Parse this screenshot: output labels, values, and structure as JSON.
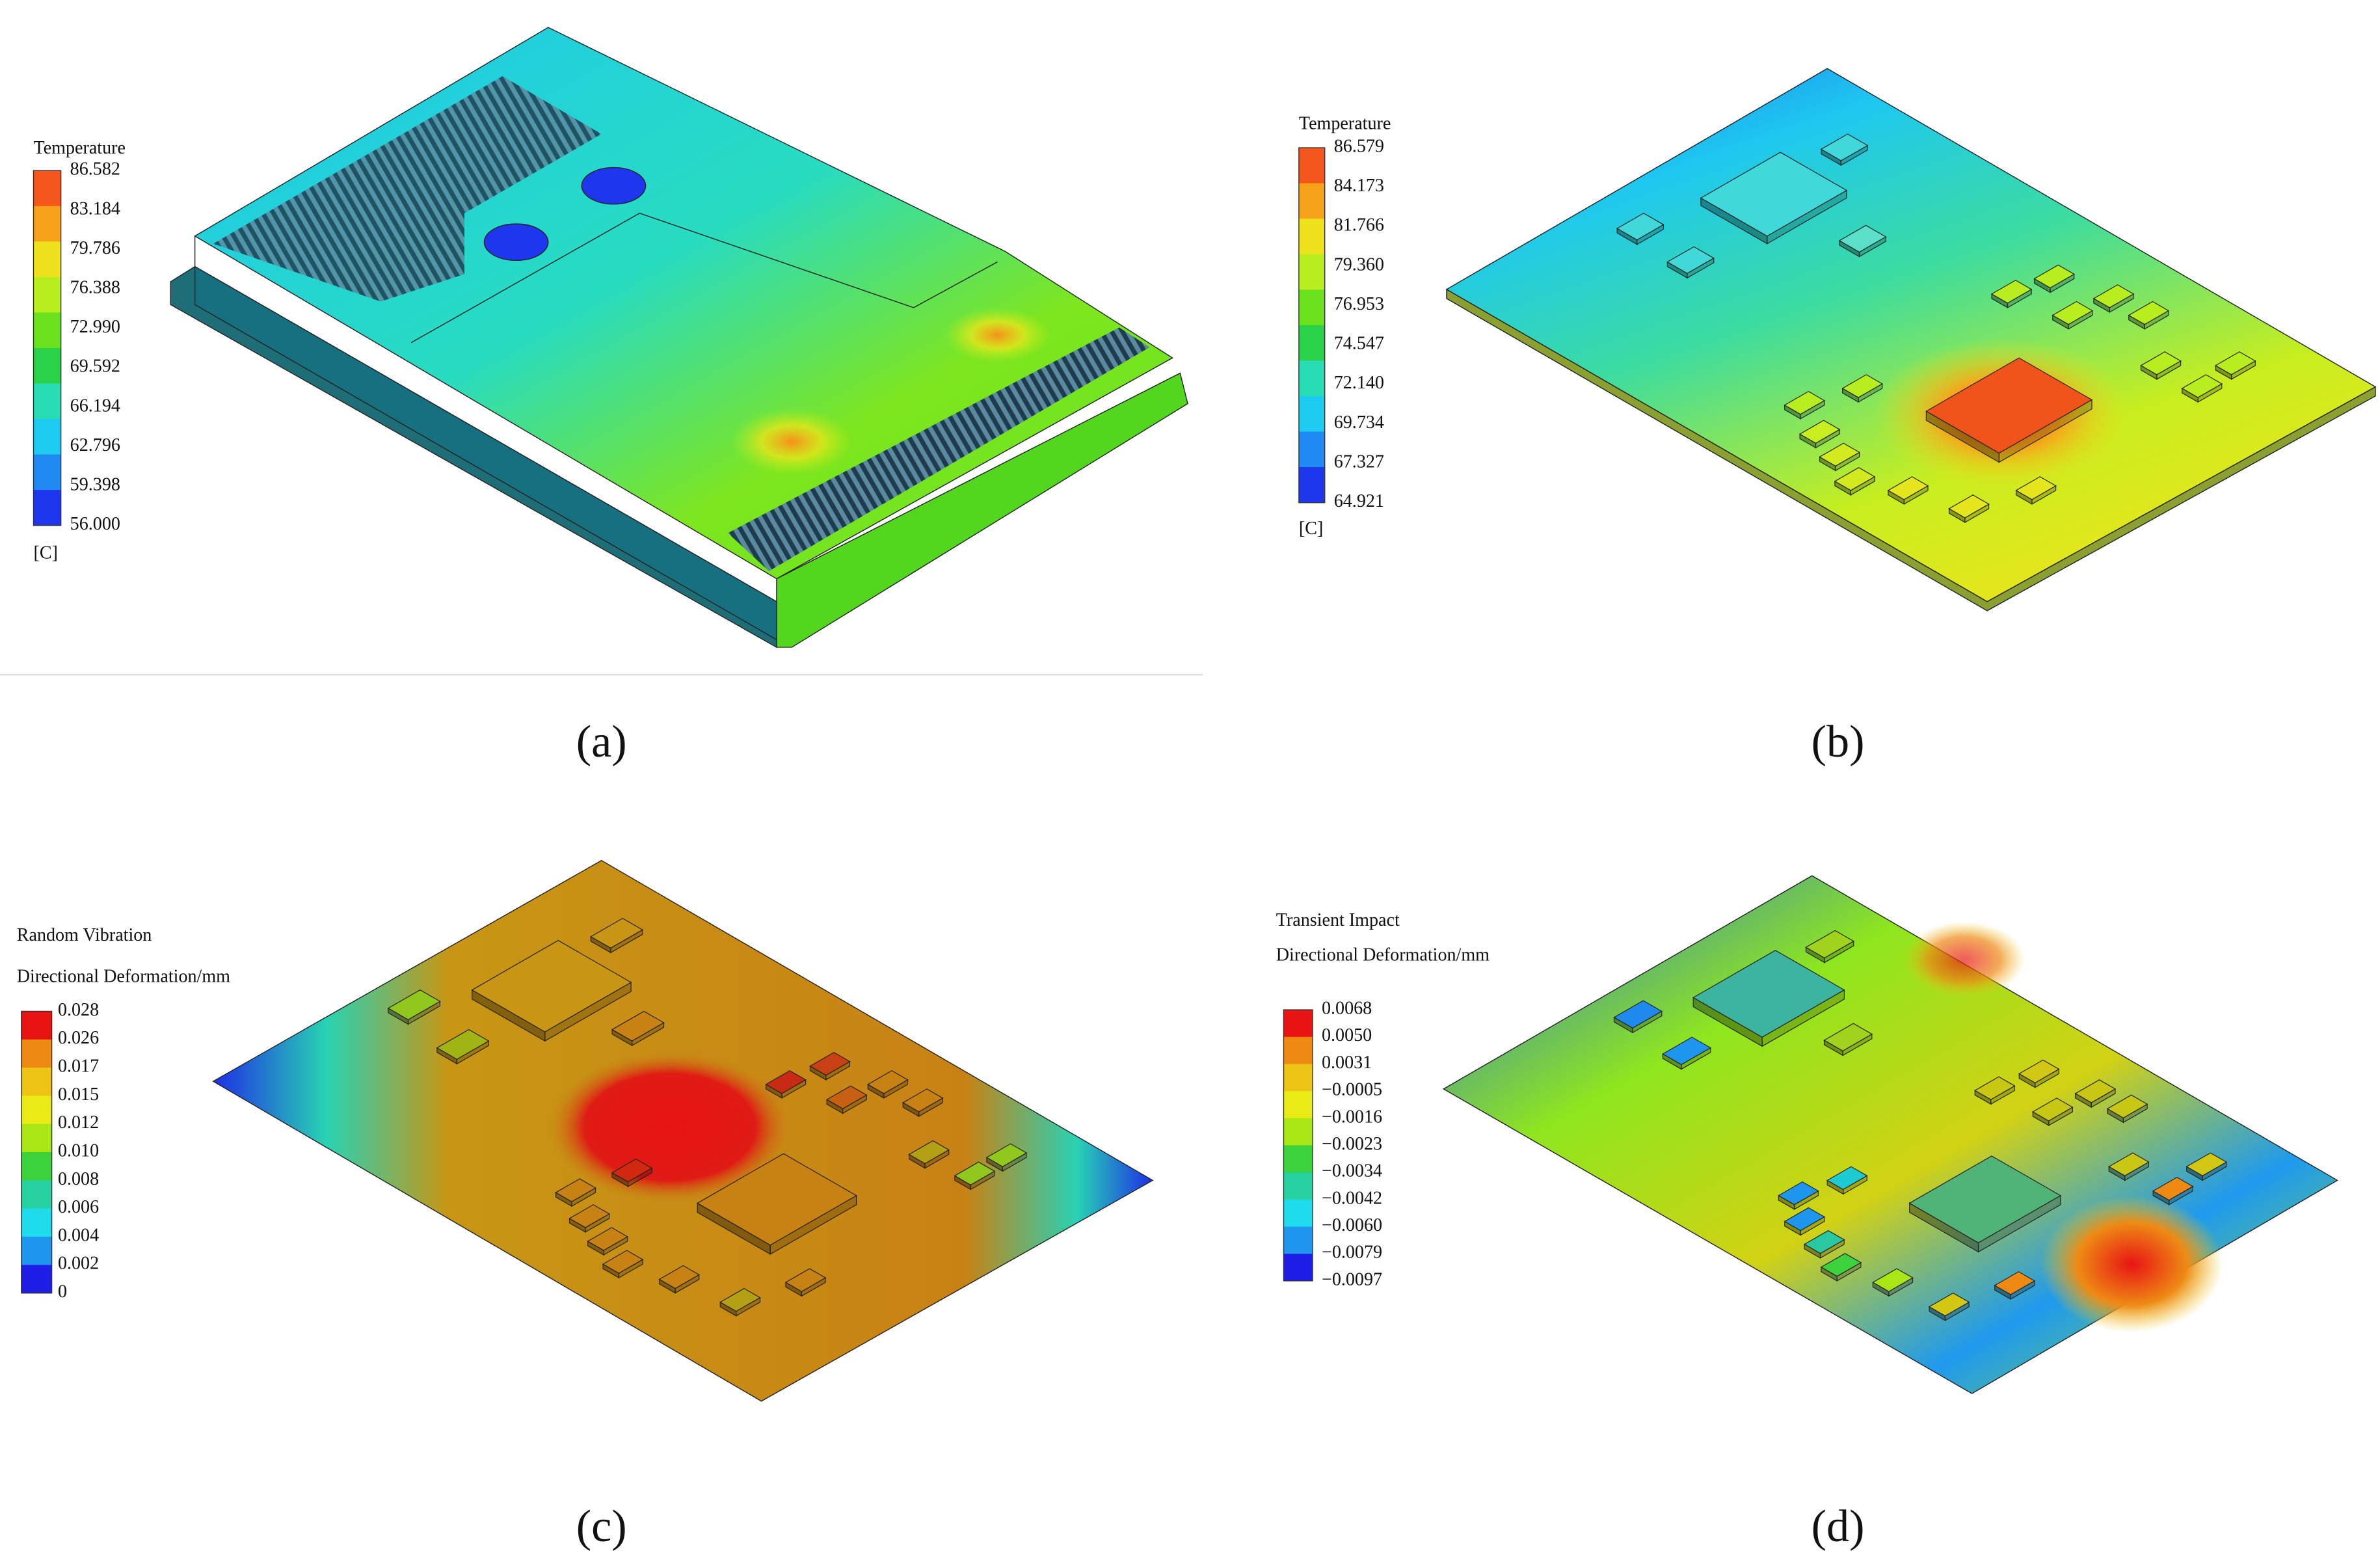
{
  "panels": [
    {
      "caption": "(a)",
      "legend": {
        "title": [
          "Temperature"
        ],
        "labels": [
          "86.582",
          "83.184",
          "79.786",
          "76.388",
          "72.990",
          "69.592",
          "66.194",
          "62.796",
          "59.398",
          "56.000"
        ],
        "unit": "[C]",
        "colors": [
          "#f5561c",
          "#f7a31a",
          "#eee21c",
          "#b8ee1e",
          "#6ce21e",
          "#2ad24a",
          "#28dcb4",
          "#1ecbf0",
          "#1e8af2",
          "#1e36ee"
        ]
      }
    },
    {
      "caption": "(b)",
      "legend": {
        "title": [
          "Temperature"
        ],
        "labels": [
          "86.579",
          "84.173",
          "81.766",
          "79.360",
          "76.953",
          "74.547",
          "72.140",
          "69.734",
          "67.327",
          "64.921"
        ],
        "unit": "[C]",
        "colors": [
          "#f5561c",
          "#f7a31a",
          "#eee21c",
          "#b8ee1e",
          "#6ce21e",
          "#2ad24a",
          "#28dcb4",
          "#1ecbf0",
          "#1e8af2",
          "#1e36ee"
        ]
      }
    },
    {
      "caption": "(c)",
      "legend": {
        "title": [
          "Random  Vibration",
          "Directional Deformation/mm"
        ],
        "labels": [
          "0.028",
          "0.026",
          "0.017",
          "0.015",
          "0.012",
          "0.010",
          "0.008",
          "0.006",
          "0.004",
          "0.002",
          "0"
        ],
        "colors": [
          "#e81414",
          "#ee8a14",
          "#eec414",
          "#eaea14",
          "#a8e614",
          "#3cd23c",
          "#28d2a0",
          "#1edcec",
          "#1e96ee",
          "#1e1ee6"
        ]
      }
    },
    {
      "caption": "(d)",
      "legend": {
        "title": [
          "Transient Impact",
          "Directional Deformation/mm"
        ],
        "labels": [
          "0.0068",
          "0.0050",
          "0.0031",
          "−0.0005",
          "−0.0016",
          "−0.0023",
          "−0.0034",
          "−0.0042",
          "−0.0060",
          "−0.0079",
          "−0.0097"
        ],
        "colors": [
          "#e81414",
          "#ee8a14",
          "#eec414",
          "#eaea14",
          "#a8e614",
          "#3cd23c",
          "#28d2a0",
          "#1edcec",
          "#1e96ee",
          "#1e1ee6"
        ]
      }
    }
  ]
}
